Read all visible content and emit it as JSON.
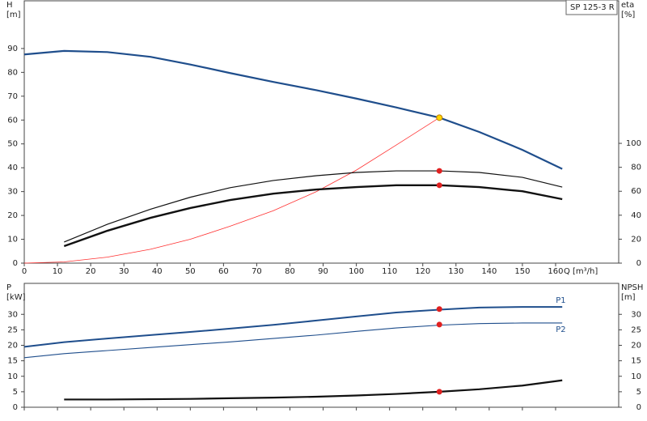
{
  "chart_data": [
    {
      "type": "line",
      "title": "SP 125-3 R",
      "ylabel": [
        "H",
        "[m]"
      ],
      "y2label": [
        "eta",
        "[%]"
      ],
      "xlabel": "Q [m³/h]",
      "xlim": [
        0,
        179
      ],
      "xticks": [
        0,
        10,
        20,
        30,
        40,
        50,
        60,
        70,
        80,
        90,
        100,
        110,
        120,
        130,
        140,
        150,
        160
      ],
      "ylim": [
        0,
        110
      ],
      "yticks": [
        0,
        10,
        20,
        30,
        40,
        50,
        60,
        70,
        80,
        90
      ],
      "y2lim": [
        0,
        219
      ],
      "y2ticks": [
        0,
        20,
        40,
        60,
        80,
        100
      ],
      "series": [
        {
          "color": "#1f4e8c",
          "width": 2.2,
          "x": [
            0,
            12,
            25,
            38,
            50,
            62,
            75,
            88,
            100,
            112,
            125,
            137,
            150,
            162
          ],
          "values": [
            87.5,
            89,
            88.5,
            86.5,
            83.3,
            79.7,
            76,
            72.5,
            69,
            65.3,
            61,
            55,
            47.5,
            39.5
          ]
        },
        {
          "color": "#ff3030",
          "width": 0.8,
          "x": [
            0,
            12,
            25,
            38,
            50,
            62,
            75,
            88,
            100,
            112,
            125
          ],
          "values": [
            0,
            0.5,
            2.5,
            5.8,
            10,
            15.5,
            22,
            30,
            39,
            49.5,
            61
          ]
        },
        {
          "color": "#111111",
          "width": 1.2,
          "axis": "y2",
          "x": [
            12,
            25,
            38,
            50,
            62,
            75,
            88,
            100,
            112,
            125,
            137,
            150,
            162
          ],
          "values": [
            17.6,
            32.4,
            45,
            55,
            63,
            69,
            73,
            75.7,
            77,
            77,
            75.7,
            71.6,
            63.5
          ]
        },
        {
          "color": "#111111",
          "width": 2.4,
          "axis": "y2",
          "x": [
            12,
            25,
            38,
            50,
            62,
            75,
            88,
            100,
            112,
            125,
            137,
            150,
            162
          ],
          "values": [
            14.2,
            27,
            37.8,
            46,
            52.7,
            58,
            61.5,
            63.5,
            65,
            65,
            63.5,
            60,
            53.4
          ]
        }
      ],
      "points": [
        {
          "x": 125,
          "y": 61,
          "color": "#ffd700"
        },
        {
          "x": 125,
          "y": 77,
          "color": "#e02020",
          "axis": "y2"
        },
        {
          "x": 125,
          "y": 65,
          "color": "#e02020",
          "axis": "y2"
        }
      ]
    },
    {
      "type": "line",
      "ylabel": [
        "P",
        "[kW]"
      ],
      "y2label": [
        "NPSH",
        "[m]"
      ],
      "xlim": [
        0,
        179
      ],
      "ylim": [
        0,
        40
      ],
      "yticks": [
        0,
        5,
        10,
        15,
        20,
        25,
        30
      ],
      "y2lim": [
        0,
        40
      ],
      "y2ticks": [
        0,
        5,
        10,
        15,
        20,
        25,
        30
      ],
      "series": [
        {
          "name": "P1",
          "color": "#1f4e8c",
          "width": 2,
          "x": [
            0,
            12,
            25,
            38,
            50,
            62,
            75,
            88,
            100,
            112,
            125,
            137,
            150,
            162
          ],
          "values": [
            19.5,
            21,
            22.2,
            23.3,
            24.3,
            25.4,
            26.6,
            28,
            29.3,
            30.6,
            31.5,
            32.2,
            32.4,
            32.4
          ]
        },
        {
          "name": "P2",
          "color": "#1f4e8c",
          "width": 1.1,
          "x": [
            0,
            12,
            25,
            38,
            50,
            62,
            75,
            88,
            100,
            112,
            125,
            137,
            150,
            162
          ],
          "values": [
            16,
            17.3,
            18.3,
            19.3,
            20.2,
            21.1,
            22.2,
            23.3,
            24.5,
            25.6,
            26.5,
            27,
            27.2,
            27.2
          ]
        },
        {
          "color": "#111111",
          "width": 2.2,
          "axis": "y2",
          "x": [
            12,
            25,
            38,
            50,
            62,
            75,
            88,
            100,
            112,
            125,
            137,
            150,
            162
          ],
          "values": [
            2.5,
            2.5,
            2.6,
            2.7,
            2.9,
            3.1,
            3.4,
            3.8,
            4.3,
            5,
            5.8,
            7,
            8.7
          ]
        }
      ],
      "points": [
        {
          "x": 125,
          "y": 31.7,
          "color": "#e02020"
        },
        {
          "x": 125,
          "y": 26.7,
          "color": "#e02020"
        },
        {
          "x": 125,
          "y": 5,
          "color": "#e02020",
          "axis": "y2"
        }
      ]
    }
  ]
}
